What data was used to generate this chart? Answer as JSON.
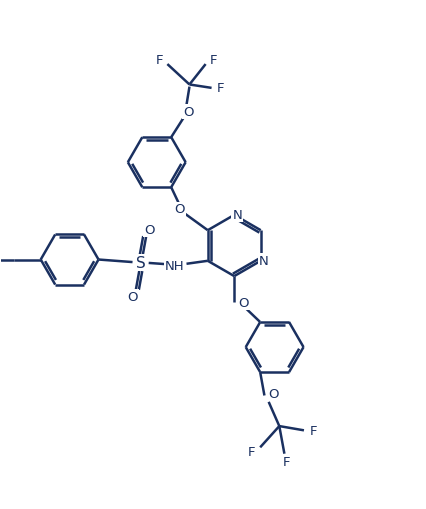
{
  "bg_color": "#ffffff",
  "line_color": "#1a3060",
  "line_width": 1.8,
  "font_size": 9.5,
  "fig_width": 4.26,
  "fig_height": 5.1,
  "dpi": 100,
  "xlim": [
    0,
    10
  ],
  "ylim": [
    0,
    12
  ]
}
